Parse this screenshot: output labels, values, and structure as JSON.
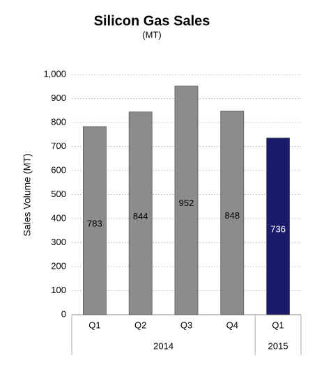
{
  "chart_data": {
    "type": "bar",
    "title": "Silicon Gas Sales",
    "subtitle": "(MT)",
    "y_label": "Sales Volume (MT)",
    "groups": [
      {
        "name": "2014",
        "categories": [
          "Q1",
          "Q2",
          "Q3",
          "Q4"
        ]
      },
      {
        "name": "2015",
        "categories": [
          "Q1"
        ]
      }
    ],
    "values": [
      783,
      844,
      952,
      848,
      736
    ],
    "colors": [
      "#8c8c8c",
      "#8c8c8c",
      "#8c8c8c",
      "#8c8c8c",
      "#1b1b6b"
    ],
    "ylim": [
      0,
      1000
    ],
    "yticks": [
      0,
      100,
      200,
      300,
      400,
      500,
      600,
      700,
      800,
      900,
      {
        "value": 1000,
        "label": "1,000"
      }
    ],
    "grid": true
  }
}
